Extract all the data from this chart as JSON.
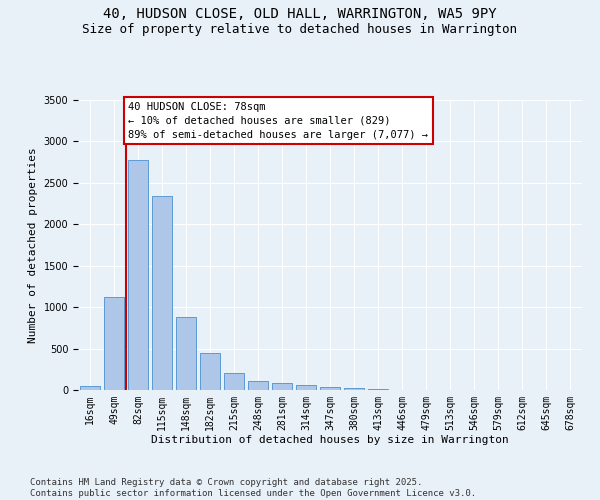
{
  "title_line1": "40, HUDSON CLOSE, OLD HALL, WARRINGTON, WA5 9PY",
  "title_line2": "Size of property relative to detached houses in Warrington",
  "xlabel": "Distribution of detached houses by size in Warrington",
  "ylabel": "Number of detached properties",
  "bar_labels": [
    "16sqm",
    "49sqm",
    "82sqm",
    "115sqm",
    "148sqm",
    "182sqm",
    "215sqm",
    "248sqm",
    "281sqm",
    "314sqm",
    "347sqm",
    "380sqm",
    "413sqm",
    "446sqm",
    "479sqm",
    "513sqm",
    "546sqm",
    "579sqm",
    "612sqm",
    "645sqm",
    "678sqm"
  ],
  "bar_values": [
    50,
    1120,
    2780,
    2340,
    880,
    445,
    200,
    110,
    90,
    65,
    35,
    30,
    10,
    5,
    5,
    0,
    0,
    0,
    0,
    0,
    0
  ],
  "bar_color": "#aec6e8",
  "bar_edge_color": "#5b9bd5",
  "property_line_x": 1.5,
  "annotation_line1": "40 HUDSON CLOSE: 78sqm",
  "annotation_line2": "← 10% of detached houses are smaller (829)",
  "annotation_line3": "89% of semi-detached houses are larger (7,077) →",
  "annotation_box_color": "#ffffff",
  "annotation_box_edge": "#cc0000",
  "vertical_line_color": "#cc0000",
  "ylim": [
    0,
    3500
  ],
  "background_color": "#e8f0f8",
  "footer_line1": "Contains HM Land Registry data © Crown copyright and database right 2025.",
  "footer_line2": "Contains public sector information licensed under the Open Government Licence v3.0.",
  "title_fontsize": 10,
  "subtitle_fontsize": 9,
  "axis_label_fontsize": 8,
  "tick_fontsize": 7,
  "annotation_fontsize": 7.5,
  "footer_fontsize": 6.5
}
